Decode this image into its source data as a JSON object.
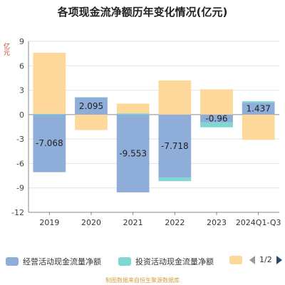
{
  "title": "各项现金流净额历年变化情况(亿元)",
  "unit_label": "亿元",
  "source": "制图数据来自恒生聚源数据库",
  "legend": {
    "items": [
      {
        "label": "经营活动现金流量净额",
        "color": "#8fadd9"
      },
      {
        "label": "投资活动现金流量净额",
        "color": "#7fd6d2"
      },
      {
        "label": "",
        "color": "#fdd89a"
      }
    ],
    "page": "1/2"
  },
  "chart_data": {
    "type": "bar",
    "stacked": true,
    "categories": [
      "2019",
      "2020",
      "2021",
      "2022",
      "2023",
      "2024Q1-Q3"
    ],
    "ylim": [
      -12,
      9
    ],
    "yticks": [
      9,
      6,
      3,
      0,
      -3,
      -6,
      -9,
      -12
    ],
    "grid": true,
    "series": [
      {
        "name": "经营活动现金流量净额",
        "color": "#8fadd9",
        "values": [
          -7.068,
          2.095,
          -9.553,
          -7.718,
          -0.96,
          1.437
        ]
      },
      {
        "name": "投资活动现金流量净额",
        "color": "#7fd6d2",
        "values": [
          0.1,
          0.05,
          0.15,
          -0.45,
          -0.6,
          0.2
        ]
      },
      {
        "name": "",
        "color": "#fdd89a",
        "values": [
          7.5,
          -1.9,
          1.2,
          4.2,
          3.1,
          -3.1
        ]
      }
    ],
    "data_labels": [
      "-7.068",
      "2.095",
      "-9.553",
      "-7.718",
      "-0.96",
      "1.437"
    ]
  }
}
